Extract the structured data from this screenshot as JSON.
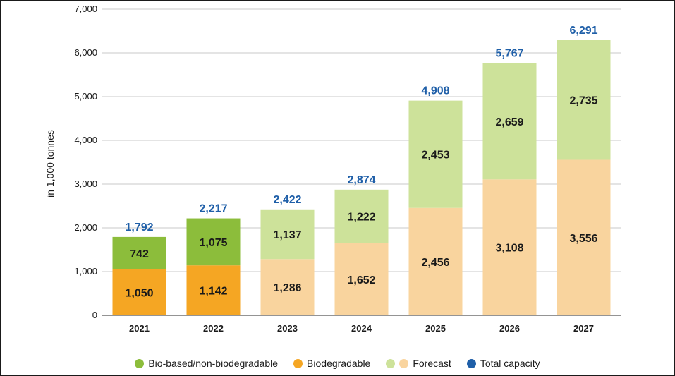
{
  "chart_data": {
    "type": "bar",
    "stacked": true,
    "title": "",
    "xlabel": "",
    "ylabel": "in 1,000 tonnes",
    "ylim": [
      0,
      7000
    ],
    "yticks": [
      0,
      1000,
      2000,
      3000,
      4000,
      5000,
      6000,
      7000
    ],
    "ytick_labels": [
      "0",
      "1,000",
      "2,000",
      "3,000",
      "4,000",
      "5,000",
      "6,000",
      "7,000"
    ],
    "grid": true,
    "legend_position": "bottom",
    "categories": [
      "2021",
      "2022",
      "2023",
      "2024",
      "2025",
      "2026",
      "2027"
    ],
    "forecast_from_index": 2,
    "series": [
      {
        "values": [
          1050,
          1142,
          1286,
          1652,
          2456,
          3108,
          3556
        ],
        "labels": [
          "1,050",
          "1,142",
          "1,286",
          "1,652",
          "2,456",
          "3,108",
          "3,556"
        ],
        "color": "#f5a623",
        "forecast_color": "#f9d49e"
      },
      {
        "values": [
          742,
          1075,
          1137,
          1222,
          2453,
          2659,
          2735
        ],
        "labels": [
          "742",
          "1,075",
          "1,137",
          "1,222",
          "2,453",
          "2,659",
          "2,735"
        ],
        "color": "#8cbd3b",
        "forecast_color": "#cde29a"
      }
    ],
    "totals": [
      1792,
      2217,
      2422,
      2874,
      4908,
      5767,
      6291
    ],
    "total_labels": [
      "1,792",
      "2,217",
      "2,422",
      "2,874",
      "4,908",
      "5,767",
      "6,291"
    ],
    "total_color": "#1f5fa8"
  },
  "legend": [
    {
      "label": "Bio-based/non-biodegradable",
      "colors": [
        "#8cbd3b"
      ]
    },
    {
      "label": "Biodegradable",
      "colors": [
        "#f5a623"
      ]
    },
    {
      "label": "Forecast",
      "colors": [
        "#cde29a",
        "#f9d49e"
      ]
    },
    {
      "label": "Total capacity",
      "colors": [
        "#1f5fa8"
      ]
    }
  ]
}
